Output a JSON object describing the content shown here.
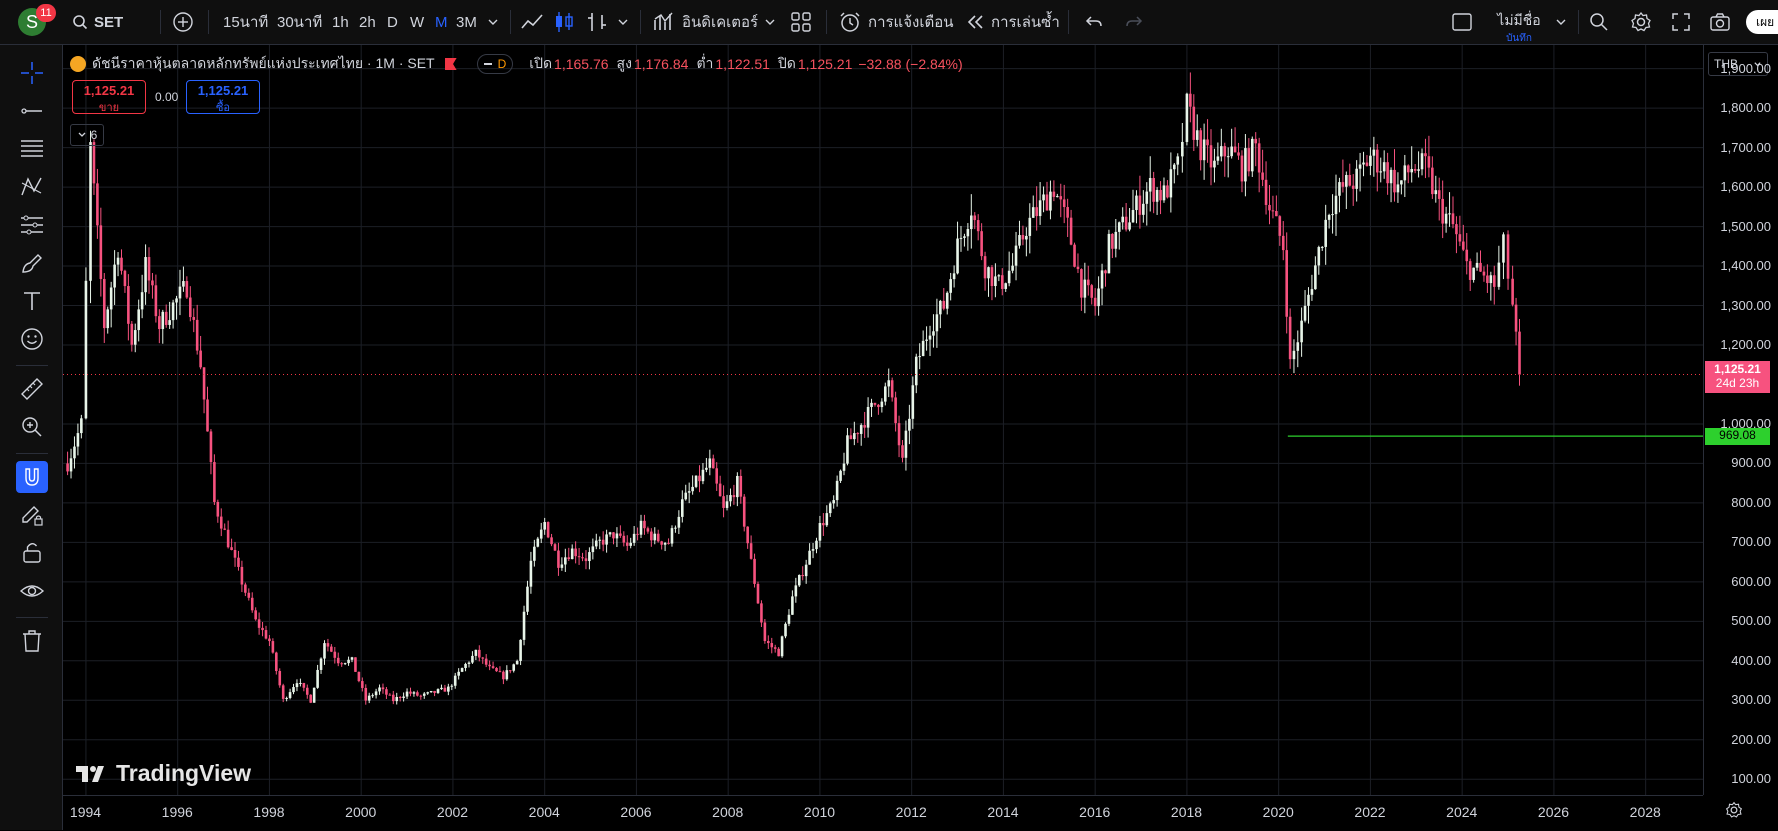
{
  "topbar": {
    "avatar_letter": "S",
    "notification_count": "11",
    "symbol": "SET",
    "intervals": [
      "15นาที",
      "30นาที",
      "1h",
      "2h",
      "D",
      "W",
      "M",
      "3M"
    ],
    "active_interval": "M",
    "indicators_label": "อินดิเคเตอร์",
    "alerts_label": "การแจ้งเตือน",
    "replay_label": "การเล่นซ้ำ",
    "layout_name": "ไม่มีชื่อ",
    "layout_status": "บันทึก",
    "publish_label": "เผย"
  },
  "legend": {
    "title": "ดัชนีราคาหุ้นตลาดหลักทรัพย์แห่งประเทศไทย · 1M · SET",
    "session_badge": "D",
    "open_label": "เปิด",
    "open_value": "1,165.76",
    "high_label": "สูง",
    "high_value": "1,176.84",
    "low_label": "ต่ำ",
    "low_value": "1,122.51",
    "close_label": "ปิด",
    "close_value": "1,125.21",
    "change": "−32.88 (−2.84%)",
    "sell_price": "1,125.21",
    "sell_label": "ขาย",
    "spread": "0.00",
    "buy_price": "1,125.21",
    "buy_label": "ซื้อ",
    "collapsed_count": "6"
  },
  "axis": {
    "currency": "THB",
    "y_ticks": [
      "1,900.00",
      "1,800.00",
      "1,700.00",
      "1,600.00",
      "1,500.00",
      "1,400.00",
      "1,300.00",
      "1,200.00",
      "1,000.00",
      "900.00",
      "800.00",
      "700.00",
      "600.00",
      "500.00",
      "400.00",
      "300.00",
      "200.00",
      "100.00"
    ],
    "x_ticks": [
      "1994",
      "1996",
      "1998",
      "2000",
      "2002",
      "2004",
      "2006",
      "2008",
      "2010",
      "2012",
      "2014",
      "2016",
      "2018",
      "2020",
      "2022",
      "2024",
      "2026",
      "2028"
    ]
  },
  "price_tags": {
    "last_price": "1,125.21",
    "countdown": "24d 23h",
    "horizontal_line_price": "969.08"
  },
  "watermark": "TradingView",
  "colors": {
    "up": "#e8f5e9",
    "down": "#f7527f",
    "line": "#2dd02d",
    "price_line": "#f23645",
    "active_tool": "#2962ff"
  },
  "chart_data": {
    "type": "candlestick",
    "interval": "1M",
    "ylim": [
      60,
      1960
    ],
    "xlim": [
      1993.5,
      2029.25
    ],
    "last_close": 1125.21,
    "horizontal_line": 969.08,
    "horizontal_line_start": 2020.2,
    "x": [
      1993.6,
      1993.9,
      1994.1,
      1994.4,
      1994.7,
      1995.0,
      1995.3,
      1995.6,
      1995.9,
      1996.2,
      1996.5,
      1996.8,
      1997.1,
      1997.4,
      1997.7,
      1998.0,
      1998.3,
      1998.6,
      1998.9,
      1999.2,
      1999.5,
      1999.8,
      2000.1,
      2000.4,
      2000.7,
      2001.0,
      2001.3,
      2001.6,
      2001.9,
      2002.2,
      2002.5,
      2002.8,
      2003.1,
      2003.4,
      2003.7,
      2004.0,
      2004.3,
      2004.6,
      2004.9,
      2005.2,
      2005.5,
      2005.8,
      2006.1,
      2006.4,
      2006.7,
      2007.0,
      2007.3,
      2007.6,
      2007.9,
      2008.2,
      2008.5,
      2008.8,
      2009.1,
      2009.4,
      2009.7,
      2010.0,
      2010.3,
      2010.6,
      2010.9,
      2011.2,
      2011.5,
      2011.8,
      2012.1,
      2012.4,
      2012.7,
      2013.0,
      2013.3,
      2013.6,
      2013.9,
      2014.2,
      2014.5,
      2014.8,
      2015.1,
      2015.4,
      2015.7,
      2016.0,
      2016.3,
      2016.6,
      2016.9,
      2017.2,
      2017.5,
      2017.8,
      2018.0,
      2018.3,
      2018.6,
      2018.9,
      2019.2,
      2019.5,
      2019.8,
      2020.1,
      2020.25,
      2020.5,
      2020.8,
      2021.1,
      2021.4,
      2021.7,
      2022.0,
      2022.3,
      2022.6,
      2022.9,
      2023.2,
      2023.5,
      2023.8,
      2024.1,
      2024.4,
      2024.7,
      2024.9,
      2025.1,
      2025.25
    ],
    "close": [
      900,
      1000,
      1700,
      1250,
      1450,
      1200,
      1400,
      1250,
      1300,
      1350,
      1150,
      800,
      700,
      600,
      500,
      450,
      300,
      350,
      300,
      450,
      400,
      400,
      300,
      330,
      300,
      320,
      310,
      320,
      330,
      380,
      420,
      380,
      360,
      400,
      650,
      750,
      650,
      680,
      660,
      700,
      720,
      690,
      740,
      710,
      700,
      800,
      850,
      900,
      780,
      850,
      650,
      450,
      420,
      560,
      650,
      740,
      800,
      950,
      1000,
      1050,
      1100,
      900,
      1150,
      1250,
      1300,
      1450,
      1550,
      1400,
      1350,
      1400,
      1500,
      1550,
      1600,
      1500,
      1350,
      1300,
      1450,
      1500,
      1550,
      1600,
      1580,
      1650,
      1800,
      1700,
      1650,
      1700,
      1650,
      1700,
      1550,
      1450,
      1150,
      1250,
      1400,
      1550,
      1600,
      1620,
      1680,
      1650,
      1600,
      1650,
      1650,
      1550,
      1500,
      1400,
      1380,
      1350,
      1450,
      1300,
      1125
    ]
  }
}
